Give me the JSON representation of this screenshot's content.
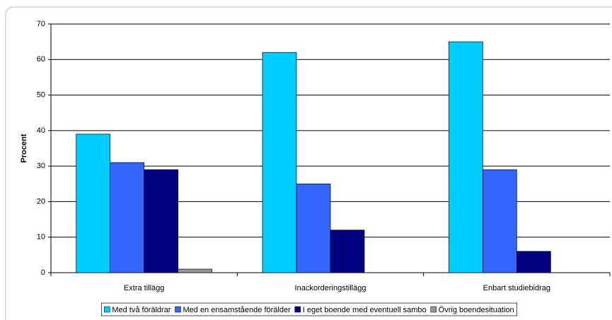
{
  "chart_data": {
    "type": "bar",
    "y_label": "Procent",
    "categories": [
      "Extra tillägg",
      "Inackorderingstillägg",
      "Enbart studiebidrag"
    ],
    "series": [
      {
        "name": "Med två föräldrar",
        "color": "#00ccff",
        "values": [
          39,
          62,
          65
        ]
      },
      {
        "name": "Med en ensamstående förälder",
        "color": "#3366ff",
        "values": [
          31,
          25,
          29
        ]
      },
      {
        "name": "I eget boende med eventuell sambo",
        "color": "#000080",
        "values": [
          29,
          12,
          6
        ]
      },
      {
        "name": "Övrig boendesituation",
        "color": "#969696",
        "values": [
          1,
          null,
          null
        ]
      }
    ],
    "ylim": [
      0,
      70
    ],
    "yticks": [
      0,
      10,
      20,
      30,
      40,
      50,
      60,
      70
    ],
    "grid": true,
    "legend": "bottom"
  }
}
